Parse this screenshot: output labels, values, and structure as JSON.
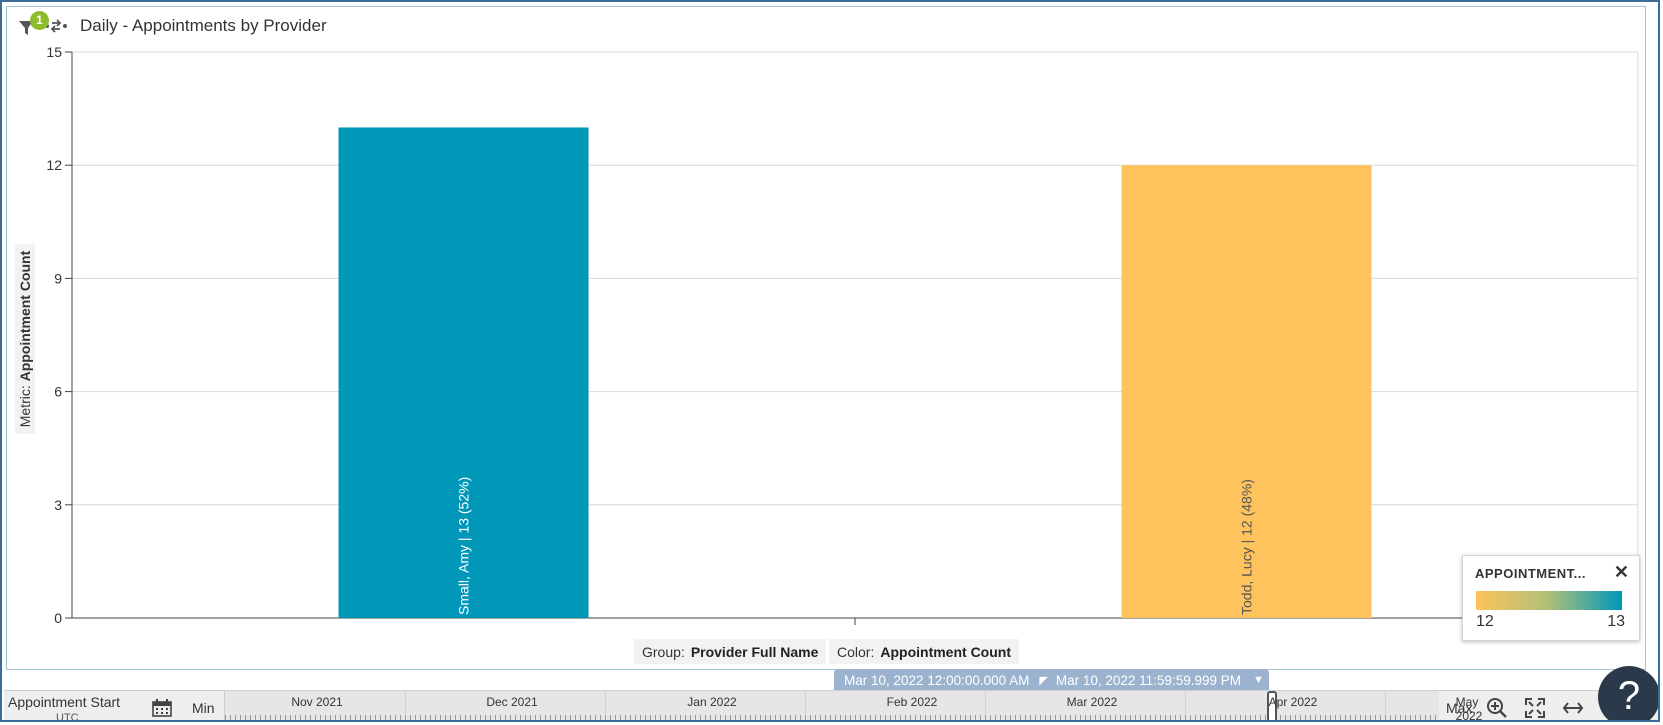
{
  "header": {
    "title": "Daily - Appointments by Provider",
    "filter_count": "1"
  },
  "chart_data": {
    "type": "bar",
    "title": "Daily - Appointments by Provider",
    "ylabel_prefix": "Metric:",
    "ylabel": "Appointment Count",
    "ylim": [
      0,
      15
    ],
    "yticks": [
      0,
      3,
      6,
      9,
      12,
      15
    ],
    "grid": true,
    "categories": [
      "Small, Amy",
      "Todd, Lucy"
    ],
    "values": [
      13,
      12
    ],
    "bar_labels": [
      "Small, Amy | 13 (52%)",
      "Todd, Lucy | 12 (48%)"
    ],
    "bar_colors": [
      "#0097b9",
      "#fec35c"
    ],
    "label_colors": [
      "#ffffff",
      "#555555"
    ],
    "legend_placement": "bottom-right"
  },
  "footer": {
    "group_label": "Group:",
    "group_value": "Provider Full Name",
    "color_label": "Color:",
    "color_value": "Appointment Count"
  },
  "legend": {
    "title": "APPOINTMENT...",
    "close_icon": "close-icon",
    "min": "12",
    "max": "13",
    "gradient": [
      "#fec35c",
      "#0097b9"
    ]
  },
  "range": {
    "start": "Mar 10, 2022 12:00:00.000 AM",
    "end": "Mar 10, 2022 11:59:59.999 PM"
  },
  "timeline": {
    "label": "Appointment Start",
    "timezone": "UTC",
    "min_label": "Min",
    "max_label": "Max",
    "months": [
      "Nov 2021",
      "Dec 2021",
      "Jan 2022",
      "Feb 2022",
      "Mar 2022",
      "Apr 2022",
      "May 2022"
    ],
    "icons": [
      "calendar-icon",
      "zoom-in-icon",
      "fit-icon",
      "expand-horizontal-icon"
    ]
  },
  "help": {
    "label": "?"
  }
}
